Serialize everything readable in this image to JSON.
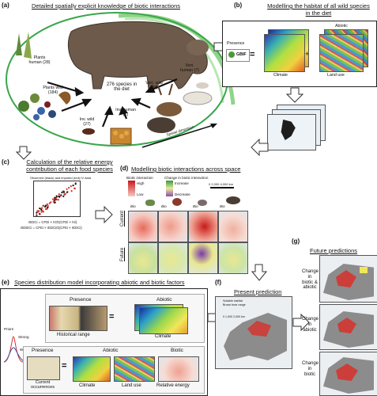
{
  "panels": {
    "a": {
      "letter": "(a)",
      "title": "Detailed spatially explicit knowledge of biotic interactions",
      "center": "276 species in the diet",
      "groups": [
        {
          "name": "plants-human",
          "text": "Plants human (28)"
        },
        {
          "name": "plants-wild",
          "text": "Plants wild (184)"
        },
        {
          "name": "inv-wild",
          "text": "Inv. wild (27)"
        },
        {
          "name": "inv-human",
          "text": "Inv. human (1)"
        },
        {
          "name": "vert-wild",
          "text": "Vert. wild (29)"
        },
        {
          "name": "vert-human",
          "text": "Vert. human (7)"
        }
      ],
      "spatial": "Spatial dimension"
    },
    "b": {
      "letter": "(b)",
      "title": "Modelling the habitat of all wild species in the diet",
      "presence": "Presence",
      "gbif": "GBIF",
      "abiotic": "Abiotic",
      "climate": "Climate",
      "land_use": "Land use"
    },
    "c": {
      "letter": "(c)",
      "title": "Calculation of the relative energy contribution of each food species",
      "plot_title": "Observed (black) and imputed (red) IV data",
      "formula1": "rEDCi = CFDi × IV/Σ(CFDi × IVi)",
      "formula2": "rEDECi = CFEi × rEDCi/Σ(CFEi × rEDCi)"
    },
    "d": {
      "letter": "(d)",
      "title": "Modelling biotic interactions across space",
      "biotic_interaction": "Biotic interaction",
      "high": "High",
      "low": "Low",
      "change": "Change in biotic interaction",
      "increase": "Increase",
      "decrease": "Decrease",
      "scale": "0   2,000  4,000 km",
      "row_current": "Current",
      "row_future": "Future",
      "bio_labels": [
        "Bio",
        "Bio",
        "Bio",
        "Bio"
      ]
    },
    "e": {
      "letter": "(e)",
      "title": "Species distribution model incorporating abiotic and biotic factors",
      "priors": "Priors",
      "strong": "Strong",
      "weak": "Weak",
      "presence": "Presence",
      "historical": "Historical range",
      "abiotic": "Abiotic",
      "climate": "Climate",
      "presence2": "Presence",
      "current": "Current occurrences",
      "abiotic2": "Abiotic",
      "biotic": "Biotic",
      "climate2": "Climate",
      "land_use": "Land use",
      "rel_energy": "Relative energy"
    },
    "f": {
      "letter": "(f)",
      "title": "Present prediction",
      "legend1": "Suitable habitat",
      "legend2": "Brown bear range",
      "scale": "0  1,000  2,000 km"
    },
    "g": {
      "letter": "(g)",
      "title": "Future predictions",
      "rows": [
        "Change in biotic & abiotic",
        "Change in abiotic",
        "Change in biotic"
      ]
    }
  },
  "colors": {
    "ellipse": "#3aa64a",
    "arrow": "#8fd48a",
    "red": "#d7302b",
    "yellow": "#f2e65a",
    "blue": "#4aa3df"
  }
}
